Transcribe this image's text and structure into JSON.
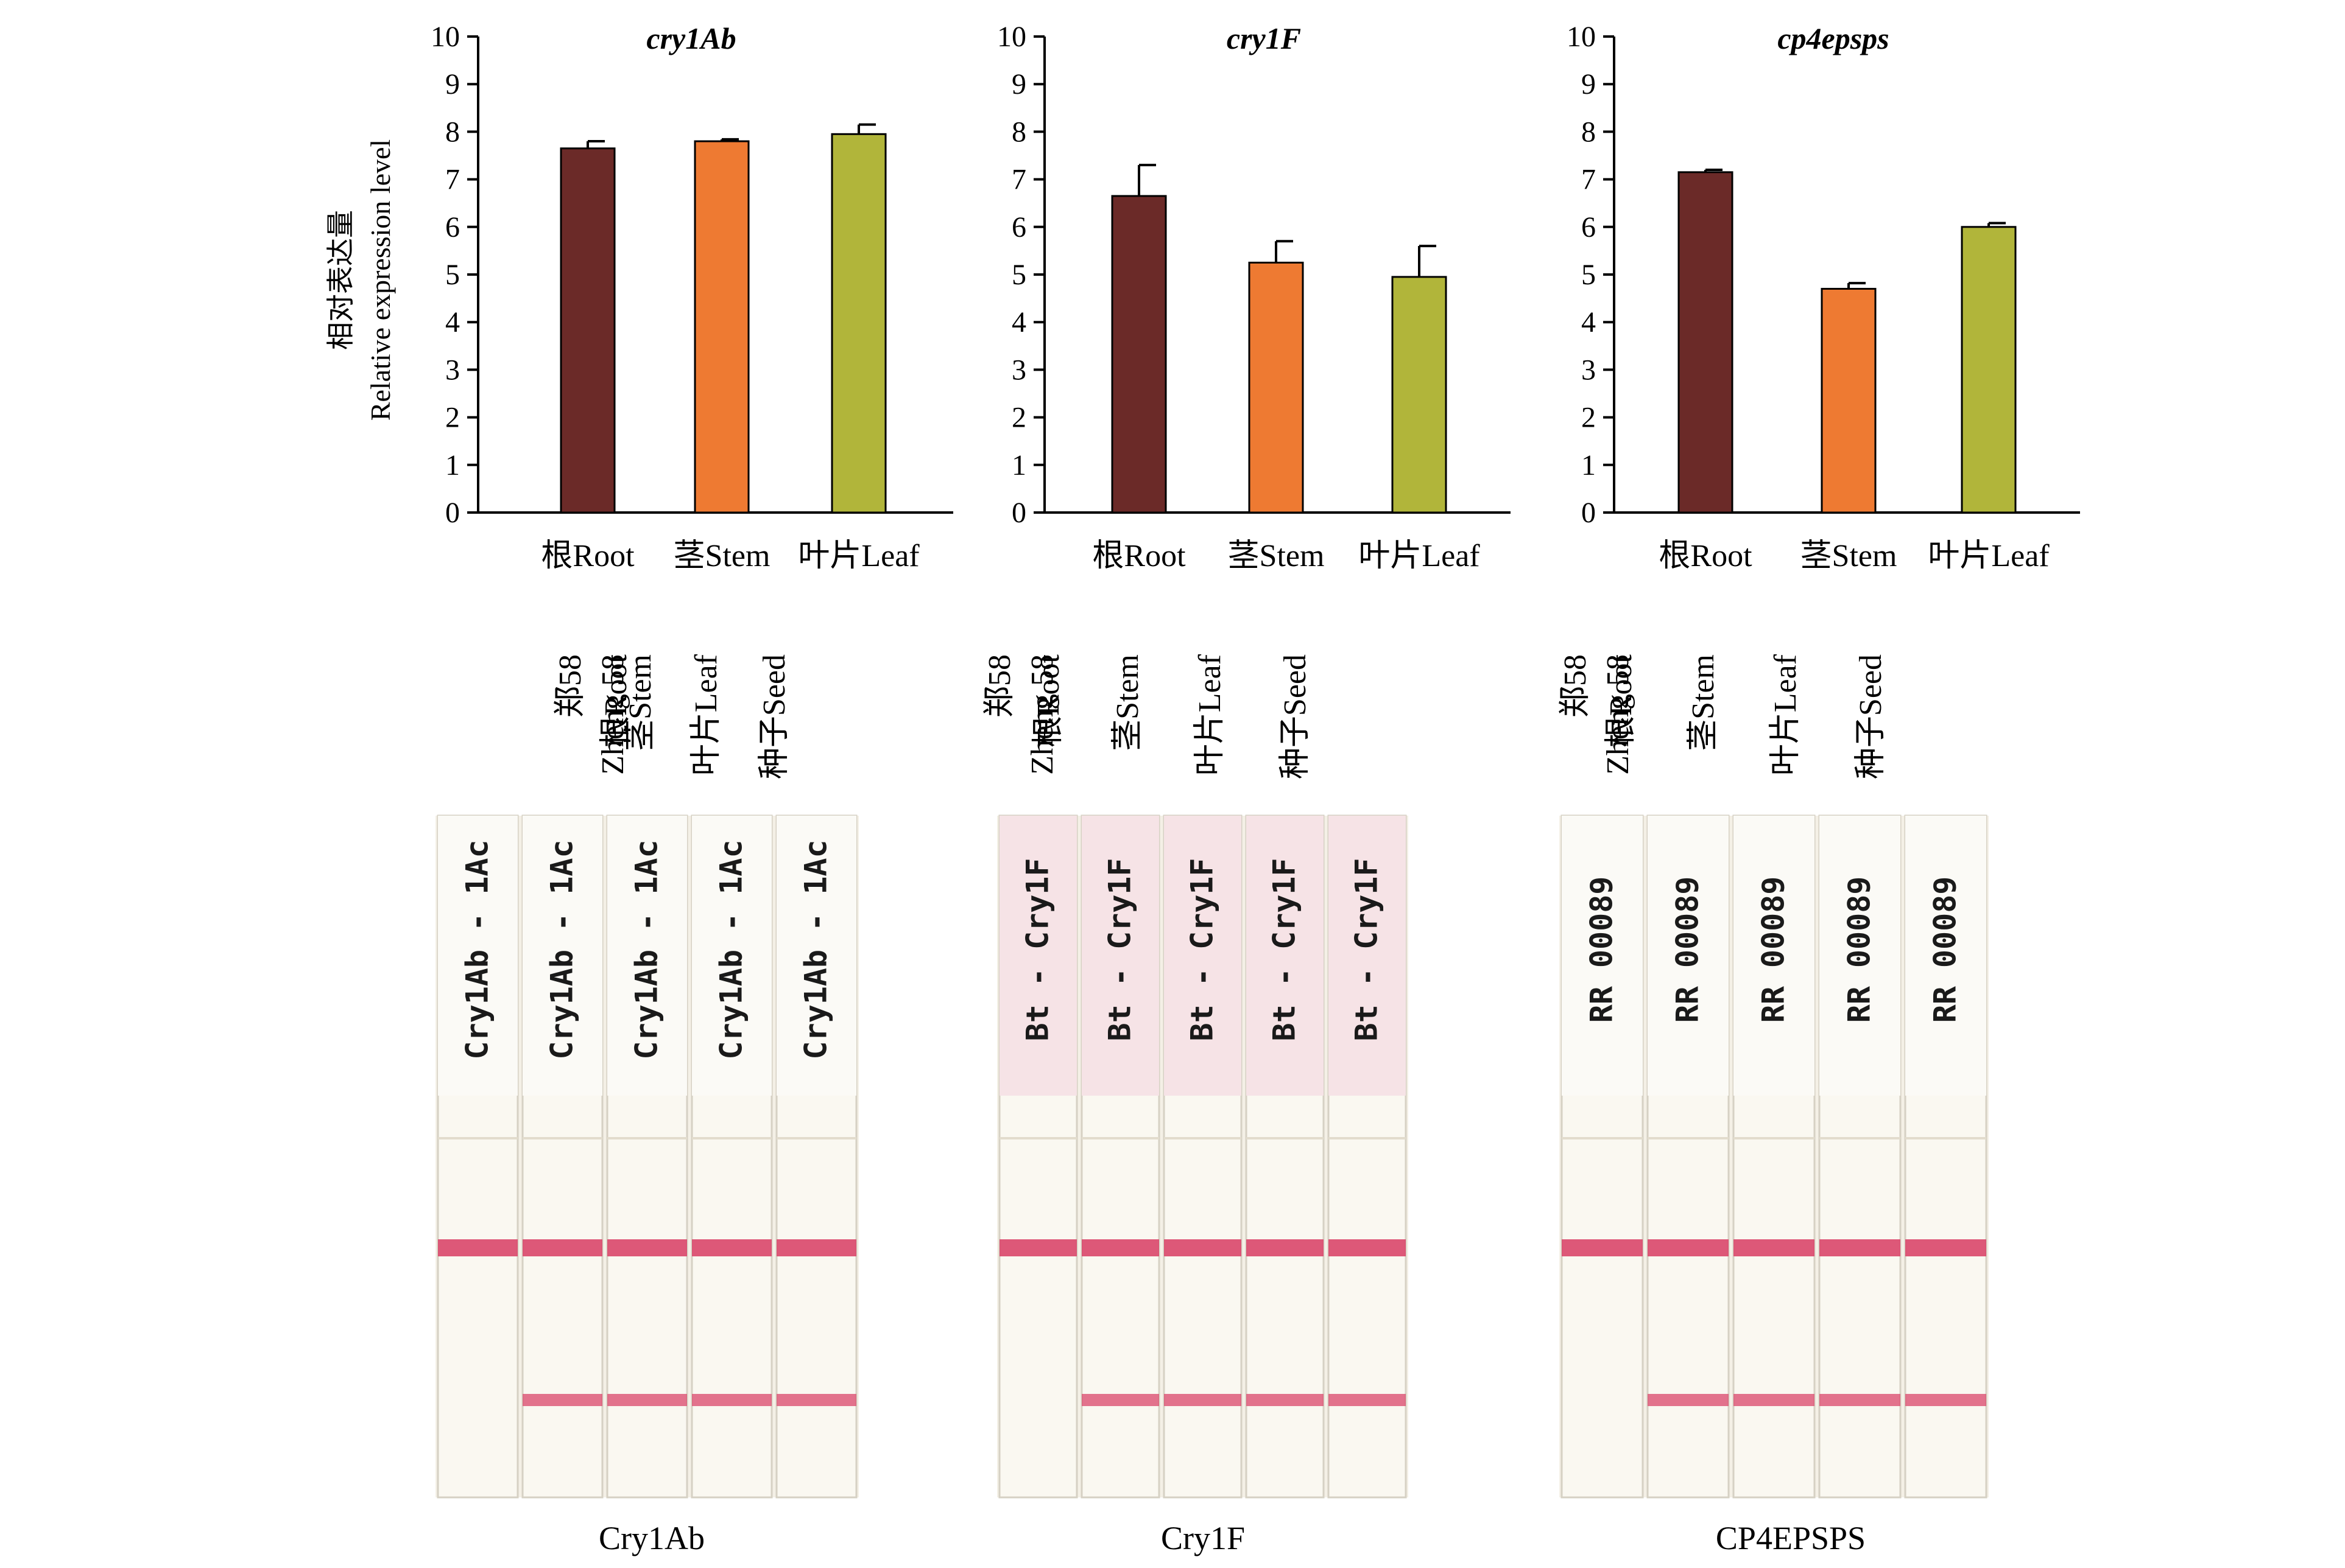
{
  "y_axis_title": {
    "zh": "相对表达量",
    "en": "Relative expression level"
  },
  "chart_data": [
    {
      "type": "bar",
      "title": "cry1Ab",
      "categories": [
        "根Root",
        "茎Stem",
        "叶片Leaf"
      ],
      "values": [
        7.65,
        7.8,
        7.95
      ],
      "errors": [
        0.15,
        0.04,
        0.2
      ],
      "colors": [
        "#6b2a28",
        "#ee7a32",
        "#b1b53a"
      ],
      "ylim": [
        0,
        10
      ],
      "yticks": [
        "0",
        "1",
        "2",
        "3",
        "4",
        "5",
        "6",
        "7",
        "8",
        "9",
        "10"
      ],
      "xlabel": "",
      "ylabel": "相对表达量 Relative expression level",
      "grid": false,
      "legend": "none"
    },
    {
      "type": "bar",
      "title": "cry1F",
      "categories": [
        "根Root",
        "茎Stem",
        "叶片Leaf"
      ],
      "values": [
        6.65,
        5.25,
        4.95
      ],
      "errors": [
        0.65,
        0.45,
        0.65
      ],
      "colors": [
        "#6b2a28",
        "#ee7a32",
        "#b1b53a"
      ],
      "ylim": [
        0,
        10
      ],
      "yticks": [
        "0",
        "1",
        "2",
        "3",
        "4",
        "5",
        "6",
        "7",
        "8",
        "9",
        "10"
      ],
      "xlabel": "",
      "ylabel": "",
      "grid": false,
      "legend": "none"
    },
    {
      "type": "bar",
      "title": "cp4epsps",
      "categories": [
        "根Root",
        "茎Stem",
        "叶片Leaf"
      ],
      "values": [
        7.15,
        4.7,
        6.0
      ],
      "errors": [
        0.05,
        0.12,
        0.08
      ],
      "colors": [
        "#6b2a28",
        "#ee7a32",
        "#b1b53a"
      ],
      "ylim": [
        0,
        10
      ],
      "yticks": [
        "0",
        "1",
        "2",
        "3",
        "4",
        "5",
        "6",
        "7",
        "8",
        "9",
        "10"
      ],
      "xlabel": "",
      "ylabel": "",
      "grid": false,
      "legend": "none"
    }
  ],
  "strip_panels": [
    {
      "caption": "Cry1Ab",
      "lanes": [
        {
          "zh": "郑58",
          "en": "Zheng 58"
        },
        {
          "zh": "根Root"
        },
        {
          "zh": "茎Stem"
        },
        {
          "zh": "叶片Leaf"
        },
        {
          "zh": "种子Seed"
        }
      ],
      "strip_label": "Cry1Ab - 1Ac",
      "test_line": [
        false,
        true,
        true,
        true,
        true
      ]
    },
    {
      "caption": "Cry1F",
      "lanes": [
        {
          "zh": "郑58",
          "en": "Zheng 58"
        },
        {
          "zh": "根Root"
        },
        {
          "zh": "茎Stem"
        },
        {
          "zh": "叶片Leaf"
        },
        {
          "zh": "种子Seed"
        }
      ],
      "strip_label": "Bt - Cry1F",
      "test_line": [
        false,
        true,
        true,
        true,
        true
      ]
    },
    {
      "caption": "CP4EPSPS",
      "lanes": [
        {
          "zh": "郑58",
          "en": "Zheng 58"
        },
        {
          "zh": "根Root"
        },
        {
          "zh": "茎Stem"
        },
        {
          "zh": "叶片Leaf"
        },
        {
          "zh": "种子Seed"
        }
      ],
      "strip_label": "RR 00089",
      "test_line": [
        false,
        true,
        true,
        true,
        true
      ]
    }
  ],
  "colors": {
    "root": "#6b2a28",
    "stem": "#ee7a32",
    "leaf": "#b1b53a",
    "band": "#d9466a"
  }
}
